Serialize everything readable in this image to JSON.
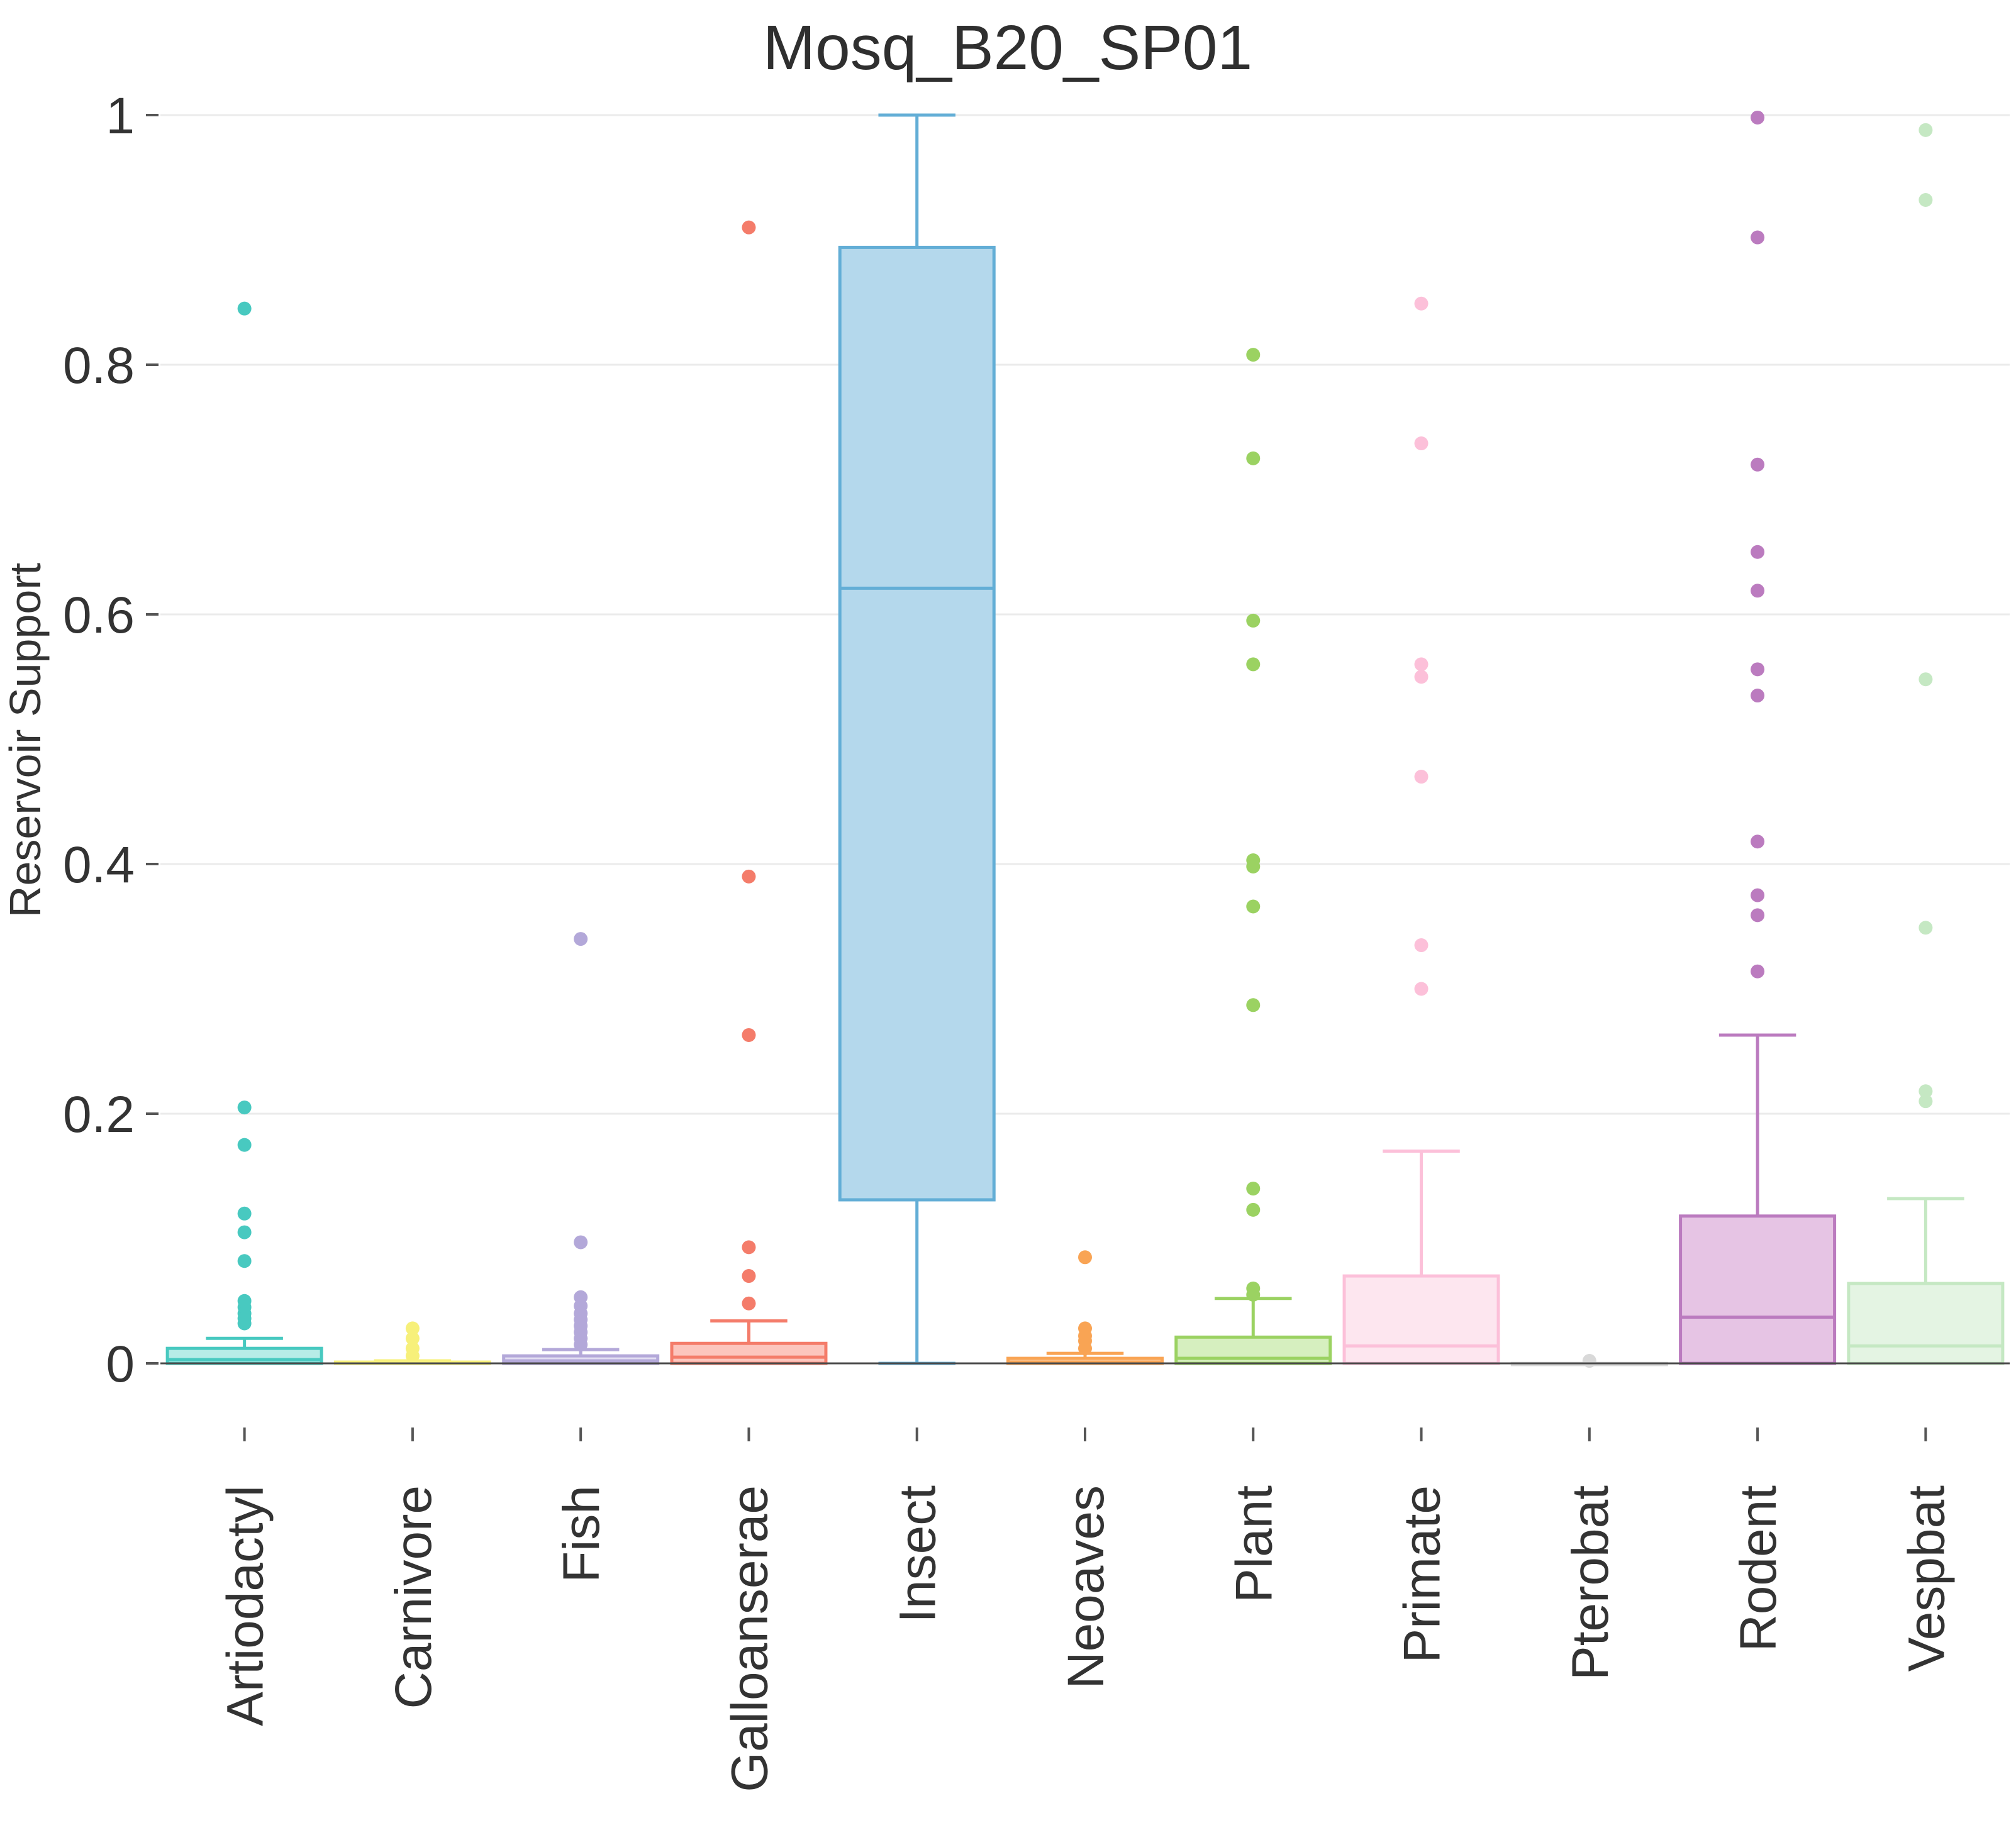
{
  "chart_data": {
    "type": "boxplot",
    "title": "Mosq_B20_SP01",
    "xlabel": "",
    "ylabel": "Reservoir Support",
    "ylim": [
      0,
      1
    ],
    "yticks": [
      {
        "value": 0,
        "label": "0"
      },
      {
        "value": 0.2,
        "label": "0.2"
      },
      {
        "value": 0.4,
        "label": "0.4"
      },
      {
        "value": 0.6,
        "label": "0.6"
      },
      {
        "value": 0.8,
        "label": "0.8"
      },
      {
        "value": 1,
        "label": "1"
      }
    ],
    "grid": true,
    "legend": "none",
    "categories": [
      "Artiodactyl",
      "Carnivore",
      "Fish",
      "Galloanserae",
      "Insect",
      "Neoaves",
      "Plant",
      "Primate",
      "Pterobat",
      "Rodent",
      "Vespbat"
    ],
    "boxes": [
      {
        "name": "Artiodactyl",
        "color": "#48c9c0",
        "fill": "#b7ece7",
        "min": 0,
        "q1": 0,
        "median": 0.003,
        "q3": 0.012,
        "max": 0.02,
        "outliers": [
          0.845,
          0.205,
          0.175,
          0.12,
          0.105,
          0.082,
          0.05,
          0.045,
          0.04,
          0.036,
          0.032
        ]
      },
      {
        "name": "Carnivore",
        "color": "#f7f07a",
        "fill": "#fdfbcf",
        "min": 0,
        "q1": 0,
        "median": 0,
        "q3": 0.001,
        "max": 0.002,
        "outliers": [
          0.028,
          0.02,
          0.012,
          0.006
        ]
      },
      {
        "name": "Fish",
        "color": "#b3a8d9",
        "fill": "#e3def2",
        "min": 0,
        "q1": 0,
        "median": 0.002,
        "q3": 0.006,
        "max": 0.011,
        "outliers": [
          0.34,
          0.097,
          0.053,
          0.046,
          0.04,
          0.035,
          0.03,
          0.025,
          0.02,
          0.015
        ]
      },
      {
        "name": "Galloanserae",
        "color": "#f47c6a",
        "fill": "#fcc5bd",
        "min": 0,
        "q1": 0,
        "median": 0.005,
        "q3": 0.016,
        "max": 0.034,
        "outliers": [
          0.91,
          0.39,
          0.263,
          0.093,
          0.07,
          0.048
        ]
      },
      {
        "name": "Insect",
        "color": "#63aed6",
        "fill": "#b4d8ec",
        "min": 0,
        "q1": 0.131,
        "median": 0.621,
        "q3": 0.894,
        "max": 1,
        "outliers": []
      },
      {
        "name": "Neoaves",
        "color": "#f9a454",
        "fill": "#fcd6b1",
        "min": 0,
        "q1": 0,
        "median": 0.001,
        "q3": 0.004,
        "max": 0.008,
        "outliers": [
          0.085,
          0.028,
          0.022,
          0.018,
          0.012
        ]
      },
      {
        "name": "Plant",
        "color": "#9bd262",
        "fill": "#d6efbf",
        "min": 0,
        "q1": 0,
        "median": 0.004,
        "q3": 0.021,
        "max": 0.052,
        "outliers": [
          0.808,
          0.725,
          0.595,
          0.56,
          0.403,
          0.398,
          0.366,
          0.287,
          0.14,
          0.123,
          0.06,
          0.055
        ]
      },
      {
        "name": "Primate",
        "color": "#fcc0d9",
        "fill": "#fde6ef",
        "min": 0,
        "q1": 0,
        "median": 0.014,
        "q3": 0.07,
        "max": 0.17,
        "outliers": [
          0.849,
          0.737,
          0.56,
          0.55,
          0.47,
          0.335,
          0.3
        ]
      },
      {
        "name": "Pterobat",
        "color": "#d9d9d9",
        "fill": "#f0f0f0",
        "min": 0,
        "q1": 0,
        "median": 0,
        "q3": 0,
        "max": 0,
        "outliers": [
          0.002
        ]
      },
      {
        "name": "Rodent",
        "color": "#bb7bbf",
        "fill": "#e6c4e4",
        "min": 0,
        "q1": 0,
        "median": 0.037,
        "q3": 0.118,
        "max": 0.263,
        "outliers": [
          0.998,
          0.902,
          0.72,
          0.65,
          0.619,
          0.556,
          0.535,
          0.418,
          0.375,
          0.359,
          0.314
        ]
      },
      {
        "name": "Vespbat",
        "color": "#c5e8c3",
        "fill": "#e4f4e3",
        "min": 0,
        "q1": 0,
        "median": 0.014,
        "q3": 0.064,
        "max": 0.132,
        "outliers": [
          0.988,
          0.932,
          0.548,
          0.349,
          0.218,
          0.21
        ]
      }
    ]
  }
}
